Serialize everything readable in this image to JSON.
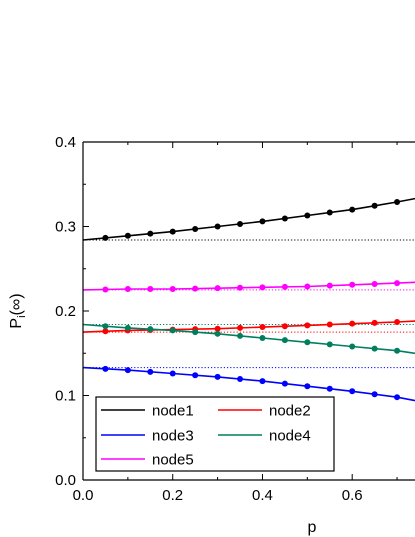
{
  "chart_data": {
    "type": "line",
    "xlabel": "p",
    "ylabel": {
      "main": "P",
      "sub": "i",
      "paren": "(∞)"
    },
    "xlim": [
      0.0,
      0.74
    ],
    "ylim": [
      0.0,
      0.4
    ],
    "xticks": [
      "0.0",
      "0.2",
      "0.4",
      "0.6"
    ],
    "xtick_values": [
      0.0,
      0.2,
      0.4,
      0.6
    ],
    "yticks": [
      "0.0",
      "0.1",
      "0.2",
      "0.3",
      "0.4"
    ],
    "ytick_values": [
      0.0,
      0.1,
      0.2,
      0.3,
      0.4
    ],
    "grid": false,
    "legend_position": "bottom-left",
    "marker_x": [
      0.05,
      0.1,
      0.15,
      0.2,
      0.25,
      0.3,
      0.35,
      0.4,
      0.45,
      0.5,
      0.55,
      0.6,
      0.65,
      0.7
    ],
    "series": [
      {
        "name": "node1",
        "color": "#000000",
        "baseline": 0.284,
        "x": [
          0.0,
          0.1,
          0.2,
          0.3,
          0.4,
          0.5,
          0.6,
          0.7,
          0.74
        ],
        "values": [
          0.284,
          0.289,
          0.294,
          0.3,
          0.306,
          0.313,
          0.32,
          0.329,
          0.333
        ]
      },
      {
        "name": "node2",
        "color": "#ff0000",
        "baseline": 0.175,
        "x": [
          0.0,
          0.1,
          0.2,
          0.3,
          0.4,
          0.5,
          0.6,
          0.7,
          0.74
        ],
        "values": [
          0.175,
          0.177,
          0.178,
          0.179,
          0.181,
          0.183,
          0.185,
          0.187,
          0.188
        ]
      },
      {
        "name": "node3",
        "color": "#0000ff",
        "baseline": 0.133,
        "x": [
          0.0,
          0.1,
          0.2,
          0.3,
          0.4,
          0.5,
          0.6,
          0.7,
          0.74
        ],
        "values": [
          0.133,
          0.13,
          0.126,
          0.122,
          0.117,
          0.111,
          0.105,
          0.098,
          0.094
        ]
      },
      {
        "name": "node4",
        "color": "#007f5f",
        "baseline": 0.184,
        "x": [
          0.0,
          0.1,
          0.2,
          0.3,
          0.4,
          0.5,
          0.6,
          0.7,
          0.74
        ],
        "values": [
          0.184,
          0.18,
          0.177,
          0.173,
          0.168,
          0.163,
          0.158,
          0.153,
          0.15
        ]
      },
      {
        "name": "node5",
        "color": "#ff00ff",
        "baseline": 0.225,
        "x": [
          0.0,
          0.1,
          0.2,
          0.3,
          0.4,
          0.5,
          0.6,
          0.7,
          0.74
        ],
        "values": [
          0.225,
          0.226,
          0.226,
          0.227,
          0.228,
          0.229,
          0.231,
          0.233,
          0.234
        ]
      }
    ],
    "legend_order": [
      "node1",
      "node2",
      "node3",
      "node4",
      "node5"
    ]
  }
}
